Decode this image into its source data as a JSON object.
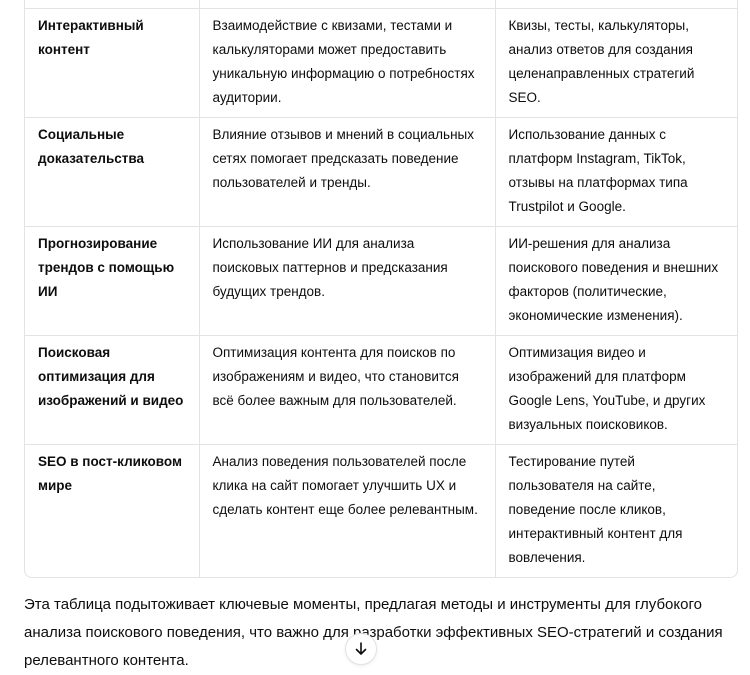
{
  "table": {
    "rows": [
      {
        "aspect": "Интерактивный контент",
        "description": "Взаимодействие с квизами, тестами и калькуляторами может предоставить уникальную информацию о потребностях аудитории.",
        "tools": "Квизы, тесты, калькуляторы, анализ ответов для создания целенаправленных стратегий SEO."
      },
      {
        "aspect": "Социальные доказательства",
        "description": "Влияние отзывов и мнений в социальных сетях помогает предсказать поведение пользователей и тренды.",
        "tools": "Использование данных с платформ Instagram, TikTok, отзывы на платформах типа Trustpilot и Google."
      },
      {
        "aspect": "Прогнозирование трендов с помощью ИИ",
        "description": "Использование ИИ для анализа поисковых паттернов и предсказания будущих трендов.",
        "tools": "ИИ-решения для анализа поискового поведения и внешних факторов (политические, экономические изменения)."
      },
      {
        "aspect": "Поисковая оптимизация для изображений и видео",
        "description": "Оптимизация контента для поисков по изображениям и видео, что становится всё более важным для пользователей.",
        "tools": "Оптимизация видео и изображений для платформ Google Lens, YouTube, и других визуальных поисковиков."
      },
      {
        "aspect": "SEO в пост-кликовом мире",
        "description": "Анализ поведения пользователей после клика на сайт помогает улучшить UX и сделать контент еще более релевантным.",
        "tools": "Тестирование путей пользователя на сайте, поведение после кликов, интерактивный контент для вовлечения."
      }
    ]
  },
  "summary": "Эта таблица подытоживает ключевые моменты, предлагая методы и инструменты для глубокого анализа поискового поведения, что важно для разработки эффективных SEO-стратегий и создания релевантного контента.",
  "scroll_button": {
    "icon": "arrow-down-icon"
  }
}
